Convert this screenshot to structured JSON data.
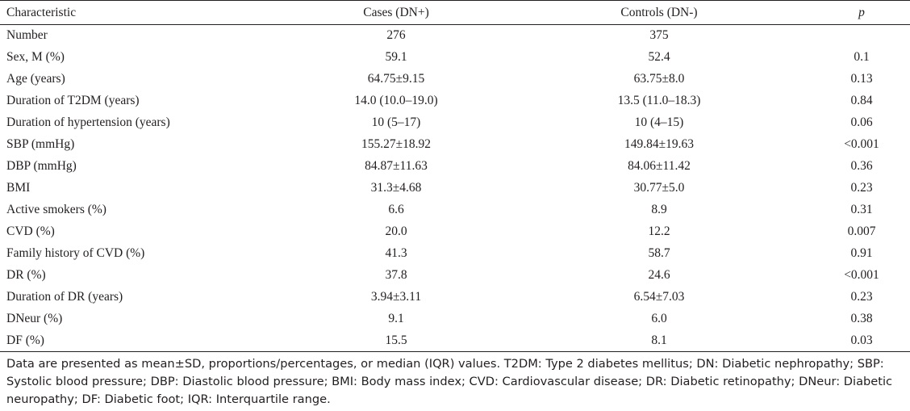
{
  "table": {
    "headers": [
      "Characteristic",
      "Cases (DN+)",
      "Controls (DN-)",
      "p"
    ],
    "rows": [
      [
        "Number",
        "276",
        "375",
        ""
      ],
      [
        "Sex, M (%)",
        "59.1",
        "52.4",
        "0.1"
      ],
      [
        "Age (years)",
        "64.75±9.15",
        "63.75±8.0",
        "0.13"
      ],
      [
        "Duration of T2DM (years)",
        "14.0 (10.0–19.0)",
        "13.5 (11.0–18.3)",
        "0.84"
      ],
      [
        "Duration of hypertension (years)",
        "10 (5–17)",
        "10 (4–15)",
        "0.06"
      ],
      [
        "SBP (mmHg)",
        "155.27±18.92",
        "149.84±19.63",
        "<0.001"
      ],
      [
        "DBP (mmHg)",
        "84.87±11.63",
        "84.06±11.42",
        "0.36"
      ],
      [
        "BMI",
        "31.3±4.68",
        "30.77±5.0",
        "0.23"
      ],
      [
        "Active smokers (%)",
        "6.6",
        "8.9",
        "0.31"
      ],
      [
        "CVD (%)",
        "20.0",
        "12.2",
        "0.007"
      ],
      [
        "Family history of CVD (%)",
        "41.3",
        "58.7",
        "0.91"
      ],
      [
        "DR (%)",
        "37.8",
        "24.6",
        "<0.001"
      ],
      [
        "Duration of DR (years)",
        "3.94±3.11",
        "6.54±7.03",
        "0.23"
      ],
      [
        "DNeur (%)",
        "9.1",
        "6.0",
        "0.38"
      ],
      [
        "DF (%)",
        "15.5",
        "8.1",
        "0.03"
      ]
    ]
  },
  "footnote": "Data are presented as mean±SD, proportions/percentages, or median (IQR) values. T2DM: Type 2 diabetes mellitus; DN: Diabetic nephropathy; SBP: Systolic blood pressure; DBP: Diastolic blood pressure; BMI: Body mass index; CVD: Cardiovascular disease; DR: Diabetic retinopathy; DNeur: Diabetic neuropathy; DF: Diabetic foot; IQR: Interquartile range."
}
